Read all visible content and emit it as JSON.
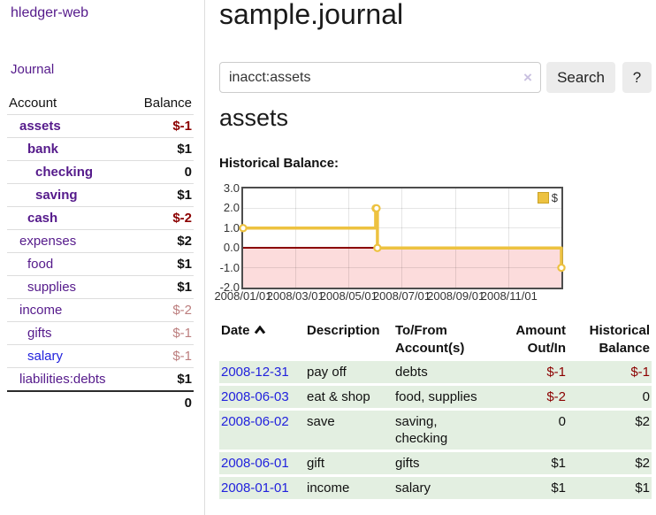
{
  "app": {
    "title": "hledger-web"
  },
  "sidebar": {
    "journal_link": "Journal",
    "accounts": {
      "account_header": "Account",
      "balance_header": "Balance",
      "rows": [
        {
          "label": "assets",
          "balance": "$-1",
          "indent": 0,
          "bold": true,
          "link": "visited",
          "balance_tone": "strong-negative"
        },
        {
          "label": "bank",
          "balance": "$1",
          "indent": 1,
          "bold": true,
          "link": "visited",
          "balance_tone": "positive"
        },
        {
          "label": "checking",
          "balance": "0",
          "indent": 2,
          "bold": true,
          "link": "visited",
          "balance_tone": "positive"
        },
        {
          "label": "saving",
          "balance": "$1",
          "indent": 2,
          "bold": true,
          "link": "visited",
          "balance_tone": "positive"
        },
        {
          "label": "cash",
          "balance": "$-2",
          "indent": 1,
          "bold": true,
          "link": "visited",
          "balance_tone": "strong-negative"
        },
        {
          "label": "expenses",
          "balance": "$2",
          "indent": 0,
          "bold": false,
          "link": "visited",
          "balance_tone": "positive"
        },
        {
          "label": "food",
          "balance": "$1",
          "indent": 1,
          "bold": false,
          "link": "visited",
          "balance_tone": "positive"
        },
        {
          "label": "supplies",
          "balance": "$1",
          "indent": 1,
          "bold": false,
          "link": "visited",
          "balance_tone": "positive"
        },
        {
          "label": "income",
          "balance": "$-2",
          "indent": 0,
          "bold": false,
          "link": "visited",
          "balance_tone": "soft-negative"
        },
        {
          "label": "gifts",
          "balance": "$-1",
          "indent": 1,
          "bold": false,
          "link": "visited",
          "balance_tone": "soft-negative"
        },
        {
          "label": "salary",
          "balance": "$-1",
          "indent": 1,
          "bold": false,
          "link": "unvisited",
          "balance_tone": "soft-negative"
        },
        {
          "label": "liabilities:debts",
          "balance": "$1",
          "indent": 0,
          "bold": false,
          "link": "visited",
          "balance_tone": "positive"
        }
      ],
      "total": "0"
    }
  },
  "main": {
    "title": "sample.journal",
    "search": {
      "value": "inacct:assets",
      "clear_icon": "×",
      "search_button": "Search",
      "help_button": "?"
    },
    "account_heading": "assets",
    "chart_label": "Historical Balance:"
  },
  "chart_data": {
    "type": "line",
    "step": true,
    "title": "Historical Balance:",
    "series": [
      {
        "name": "$",
        "color": "#edc240",
        "points": [
          [
            "2008/01/01",
            1
          ],
          [
            "2008/06/01",
            2
          ],
          [
            "2008/06/02",
            2
          ],
          [
            "2008/06/03",
            0
          ],
          [
            "2008/12/31",
            -1
          ]
        ]
      }
    ],
    "x_tick_labels": [
      "2008/01/01",
      "2008/03/01",
      "2008/05/01",
      "2008/07/01",
      "2008/09/01",
      "2008/11/01"
    ],
    "y_tick_labels": [
      "3.0",
      "2.0",
      "1.0",
      "0.0",
      "-1.0",
      "-2.0"
    ],
    "ylim": [
      -2,
      3
    ],
    "grid": true,
    "legend": {
      "label": "$",
      "position": "top-right"
    },
    "negative_region_color": "#fcdcdc",
    "zero_line_color": "#8b0000",
    "line_color": "#edc240"
  },
  "register": {
    "headers": [
      "Date",
      "Description",
      "To/From Account(s)",
      "Amount Out/In",
      "Historical Balance"
    ],
    "sort": {
      "column": "Date",
      "direction": "asc"
    },
    "rows": [
      {
        "date": "2008-12-31",
        "description": "pay off",
        "accounts": "debts",
        "amount": "$-1",
        "amount_negative": true,
        "balance": "$-1",
        "balance_negative": true
      },
      {
        "date": "2008-06-03",
        "description": "eat & shop",
        "accounts": "food, supplies",
        "amount": "$-2",
        "amount_negative": true,
        "balance": "0",
        "balance_negative": false
      },
      {
        "date": "2008-06-02",
        "description": "save",
        "accounts": "saving, checking",
        "amount": "0",
        "amount_negative": false,
        "balance": "$2",
        "balance_negative": false
      },
      {
        "date": "2008-06-01",
        "description": "gift",
        "accounts": "gifts",
        "amount": "$1",
        "amount_negative": false,
        "balance": "$2",
        "balance_negative": false
      },
      {
        "date": "2008-01-01",
        "description": "income",
        "accounts": "salary",
        "amount": "$1",
        "amount_negative": false,
        "balance": "$1",
        "balance_negative": false
      }
    ]
  },
  "colors": {
    "link_visited": "#551a8b",
    "link_new": "#2222dd",
    "negative_strong": "#8b0000",
    "negative_soft": "#bc7e7e",
    "register_row_background": "#e3efe1",
    "chart_gold": "#edc240"
  }
}
